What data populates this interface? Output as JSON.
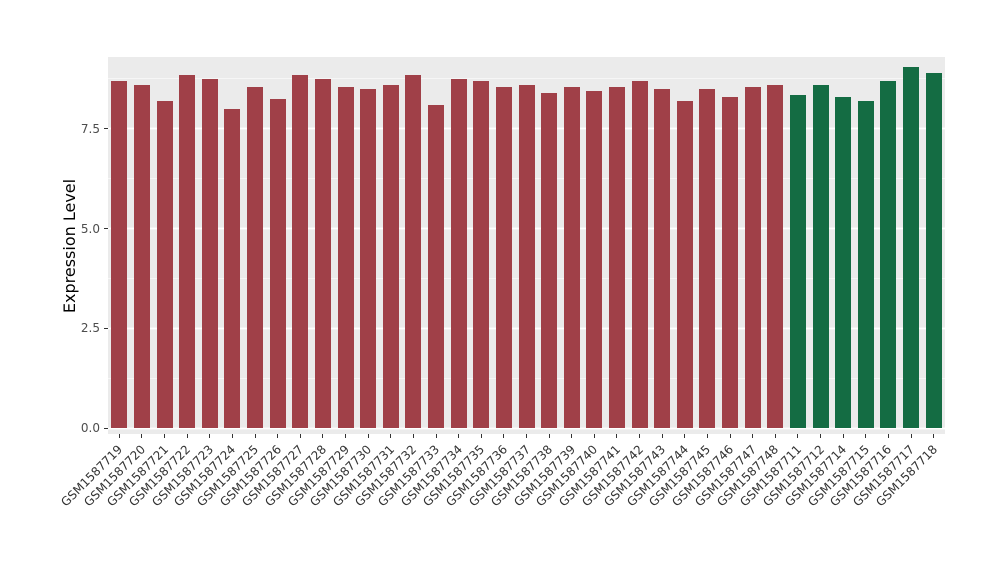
{
  "chart_data": {
    "type": "bar",
    "title": "",
    "xlabel": "",
    "ylabel": "Expression Level",
    "ytick_values": [
      0.0,
      2.5,
      5.0,
      7.5
    ],
    "ytick_labels": [
      "0.0",
      "2.5",
      "5.0",
      "7.5"
    ],
    "minor_tick_values": [
      1.25,
      3.75,
      6.25,
      8.75
    ],
    "ylim": [
      0,
      9.3
    ],
    "grid": "on",
    "legend": "none",
    "panel_background": "#EBEBEB",
    "gridline_color": "#FFFFFF",
    "group_colors": {
      "group1": "#A04048",
      "group2": "#146C43"
    },
    "bars": [
      {
        "label": "GSM1587719",
        "value": 8.7,
        "group": "group1"
      },
      {
        "label": "GSM1587720",
        "value": 8.6,
        "group": "group1"
      },
      {
        "label": "GSM1587721",
        "value": 8.2,
        "group": "group1"
      },
      {
        "label": "GSM1587722",
        "value": 8.85,
        "group": "group1"
      },
      {
        "label": "GSM1587723",
        "value": 8.75,
        "group": "group1"
      },
      {
        "label": "GSM1587724",
        "value": 8.0,
        "group": "group1"
      },
      {
        "label": "GSM1587725",
        "value": 8.55,
        "group": "group1"
      },
      {
        "label": "GSM1587726",
        "value": 8.25,
        "group": "group1"
      },
      {
        "label": "GSM1587727",
        "value": 8.85,
        "group": "group1"
      },
      {
        "label": "GSM1587728",
        "value": 8.75,
        "group": "group1"
      },
      {
        "label": "GSM1587729",
        "value": 8.55,
        "group": "group1"
      },
      {
        "label": "GSM1587730",
        "value": 8.5,
        "group": "group1"
      },
      {
        "label": "GSM1587731",
        "value": 8.6,
        "group": "group1"
      },
      {
        "label": "GSM1587732",
        "value": 8.85,
        "group": "group1"
      },
      {
        "label": "GSM1587733",
        "value": 8.1,
        "group": "group1"
      },
      {
        "label": "GSM1587734",
        "value": 8.75,
        "group": "group1"
      },
      {
        "label": "GSM1587735",
        "value": 8.7,
        "group": "group1"
      },
      {
        "label": "GSM1587736",
        "value": 8.55,
        "group": "group1"
      },
      {
        "label": "GSM1587737",
        "value": 8.6,
        "group": "group1"
      },
      {
        "label": "GSM1587738",
        "value": 8.4,
        "group": "group1"
      },
      {
        "label": "GSM1587739",
        "value": 8.55,
        "group": "group1"
      },
      {
        "label": "GSM1587740",
        "value": 8.45,
        "group": "group1"
      },
      {
        "label": "GSM1587741",
        "value": 8.55,
        "group": "group1"
      },
      {
        "label": "GSM1587742",
        "value": 8.7,
        "group": "group1"
      },
      {
        "label": "GSM1587743",
        "value": 8.5,
        "group": "group1"
      },
      {
        "label": "GSM1587744",
        "value": 8.2,
        "group": "group1"
      },
      {
        "label": "GSM1587745",
        "value": 8.5,
        "group": "group1"
      },
      {
        "label": "GSM1587746",
        "value": 8.3,
        "group": "group1"
      },
      {
        "label": "GSM1587747",
        "value": 8.55,
        "group": "group1"
      },
      {
        "label": "GSM1587748",
        "value": 8.6,
        "group": "group1"
      },
      {
        "label": "GSM1587711",
        "value": 8.35,
        "group": "group2"
      },
      {
        "label": "GSM1587712",
        "value": 8.6,
        "group": "group2"
      },
      {
        "label": "GSM1587714",
        "value": 8.3,
        "group": "group2"
      },
      {
        "label": "GSM1587715",
        "value": 8.2,
        "group": "group2"
      },
      {
        "label": "GSM1587716",
        "value": 8.7,
        "group": "group2"
      },
      {
        "label": "GSM1587717",
        "value": 9.05,
        "group": "group2"
      },
      {
        "label": "GSM1587718",
        "value": 8.9,
        "group": "group2"
      }
    ]
  }
}
